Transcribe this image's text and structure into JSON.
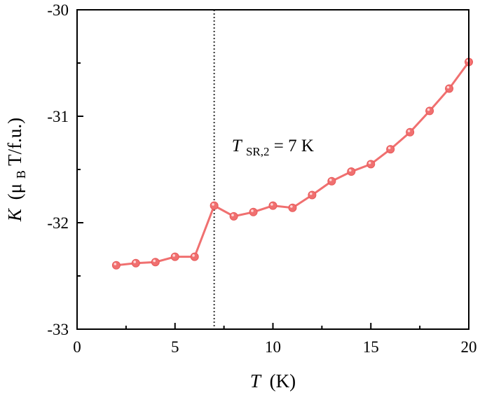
{
  "chart_data": {
    "type": "line",
    "title": "",
    "xlabel": {
      "symbol": "T",
      "unit": "(K)"
    },
    "ylabel": {
      "symbol": "K",
      "open": "(μ",
      "sub": "B",
      "rest": "T/f.u.)"
    },
    "xlim": [
      0,
      20
    ],
    "ylim": [
      -33,
      -30
    ],
    "y_inverted": true,
    "xticks": [
      0,
      5,
      10,
      15,
      20
    ],
    "yticks": [
      -30,
      -31,
      -32,
      -33
    ],
    "grid": false,
    "legend": "none",
    "series": [
      {
        "color": "#f07070",
        "x": [
          2,
          3,
          4,
          5,
          6,
          7,
          8,
          9,
          10,
          11,
          12,
          13,
          14,
          15,
          16,
          17,
          18,
          19,
          20
        ],
        "y": [
          -32.4,
          -32.38,
          -32.37,
          -32.32,
          -32.32,
          -31.84,
          -31.94,
          -31.9,
          -31.84,
          -31.86,
          -31.74,
          -31.61,
          -31.52,
          -31.45,
          -31.31,
          -31.15,
          -30.95,
          -30.74,
          -30.49
        ]
      }
    ],
    "annotations": [
      {
        "type": "vline",
        "x": 7,
        "style": "dotted",
        "color": "#333333"
      },
      {
        "type": "text",
        "symbol": "T",
        "sub": "SR,2",
        "rest": " = 7 K",
        "x": 7.9,
        "y": -31.33
      }
    ]
  }
}
